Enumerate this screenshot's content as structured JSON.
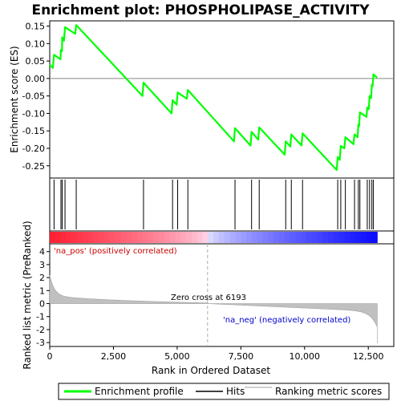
{
  "chart_data": {
    "type": "line",
    "title": "Enrichment plot: PHOSPHOLIPASE_ACTIVITY",
    "xlabel": "Rank in Ordered Dataset",
    "ylabel_top": "Enrichment score (ES)",
    "ylabel_bottom": "Ranked list metric (PreRanked)",
    "x_range": [
      0,
      13500
    ],
    "es_ylim": [
      -0.285,
      0.165
    ],
    "metric_ylim": [
      -3.3,
      4.6
    ],
    "x_ticks": [
      {
        "value": 0,
        "label": "0"
      },
      {
        "value": 2500,
        "label": "2,500"
      },
      {
        "value": 5000,
        "label": "5,000"
      },
      {
        "value": 7500,
        "label": "7,500"
      },
      {
        "value": 10000,
        "label": "10,000"
      },
      {
        "value": 12500,
        "label": "12,500"
      }
    ],
    "es_ticks": [
      {
        "value": 0.15,
        "label": "0.15"
      },
      {
        "value": 0.1,
        "label": "0.10"
      },
      {
        "value": 0.05,
        "label": "0.05"
      },
      {
        "value": 0.0,
        "label": "0.00"
      },
      {
        "value": -0.05,
        "label": "-0.05"
      },
      {
        "value": -0.1,
        "label": "-0.10"
      },
      {
        "value": -0.15,
        "label": "-0.15"
      },
      {
        "value": -0.2,
        "label": "-0.20"
      },
      {
        "value": -0.25,
        "label": "-0.25"
      }
    ],
    "metric_ticks": [
      {
        "value": 4,
        "label": "4"
      },
      {
        "value": 3,
        "label": "3"
      },
      {
        "value": 2,
        "label": "2"
      },
      {
        "value": 1,
        "label": "1"
      },
      {
        "value": 0,
        "label": "0"
      },
      {
        "value": -1,
        "label": "-1"
      },
      {
        "value": -2,
        "label": "-2"
      },
      {
        "value": -3,
        "label": "-3"
      }
    ],
    "enrichment_profile": [
      [
        0,
        0.04
      ],
      [
        120,
        0.03
      ],
      [
        170,
        0.068
      ],
      [
        420,
        0.055
      ],
      [
        440,
        0.082
      ],
      [
        480,
        0.078
      ],
      [
        490,
        0.118
      ],
      [
        560,
        0.108
      ],
      [
        600,
        0.147
      ],
      [
        1000,
        0.128
      ],
      [
        1040,
        0.153
      ],
      [
        3640,
        -0.05
      ],
      [
        3680,
        -0.012
      ],
      [
        4780,
        -0.1
      ],
      [
        4820,
        -0.062
      ],
      [
        4980,
        -0.075
      ],
      [
        5020,
        -0.04
      ],
      [
        5380,
        -0.058
      ],
      [
        5420,
        -0.033
      ],
      [
        7230,
        -0.18
      ],
      [
        7270,
        -0.142
      ],
      [
        7880,
        -0.192
      ],
      [
        7920,
        -0.153
      ],
      [
        8180,
        -0.175
      ],
      [
        8220,
        -0.14
      ],
      [
        9220,
        -0.218
      ],
      [
        9260,
        -0.18
      ],
      [
        9440,
        -0.195
      ],
      [
        9480,
        -0.16
      ],
      [
        9880,
        -0.192
      ],
      [
        9920,
        -0.157
      ],
      [
        11260,
        -0.262
      ],
      [
        11300,
        -0.225
      ],
      [
        11380,
        -0.233
      ],
      [
        11420,
        -0.193
      ],
      [
        11560,
        -0.2
      ],
      [
        11600,
        -0.168
      ],
      [
        11920,
        -0.188
      ],
      [
        11960,
        -0.16
      ],
      [
        12080,
        -0.168
      ],
      [
        12110,
        -0.132
      ],
      [
        12140,
        -0.136
      ],
      [
        12170,
        -0.097
      ],
      [
        12430,
        -0.11
      ],
      [
        12460,
        -0.083
      ],
      [
        12520,
        -0.088
      ],
      [
        12550,
        -0.05
      ],
      [
        12610,
        -0.056
      ],
      [
        12640,
        -0.018
      ],
      [
        12670,
        -0.022
      ],
      [
        12700,
        0.012
      ],
      [
        12850,
        0.002
      ]
    ],
    "hits": [
      170,
      440,
      490,
      600,
      1040,
      3680,
      4820,
      5020,
      5420,
      7270,
      7920,
      8220,
      9260,
      9480,
      9920,
      11300,
      11420,
      11600,
      11960,
      12110,
      12170,
      12460,
      12550,
      12640,
      12700
    ],
    "zero_cross_rank": 6193,
    "dataset_size": 12850,
    "annotations": {
      "pos_label": "'na_pos' (positively correlated)",
      "neg_label": "'na_neg' (negatively correlated)",
      "zero_cross_label": "Zero cross at 6193"
    },
    "legend": {
      "placement": "bottom",
      "entries": [
        {
          "label": "Enrichment profile",
          "color": "#00ff00"
        },
        {
          "label": "Hits",
          "color": "#000000"
        },
        {
          "label": "Ranking metric scores",
          "color": "#c0c0c0"
        }
      ]
    },
    "colors": {
      "profile": "#00ff00",
      "hits": "#000000",
      "metric": "#c0c0c0",
      "pos": "#ff0000",
      "neg": "#0000ff",
      "zero_line": "#aaaaaa"
    }
  }
}
